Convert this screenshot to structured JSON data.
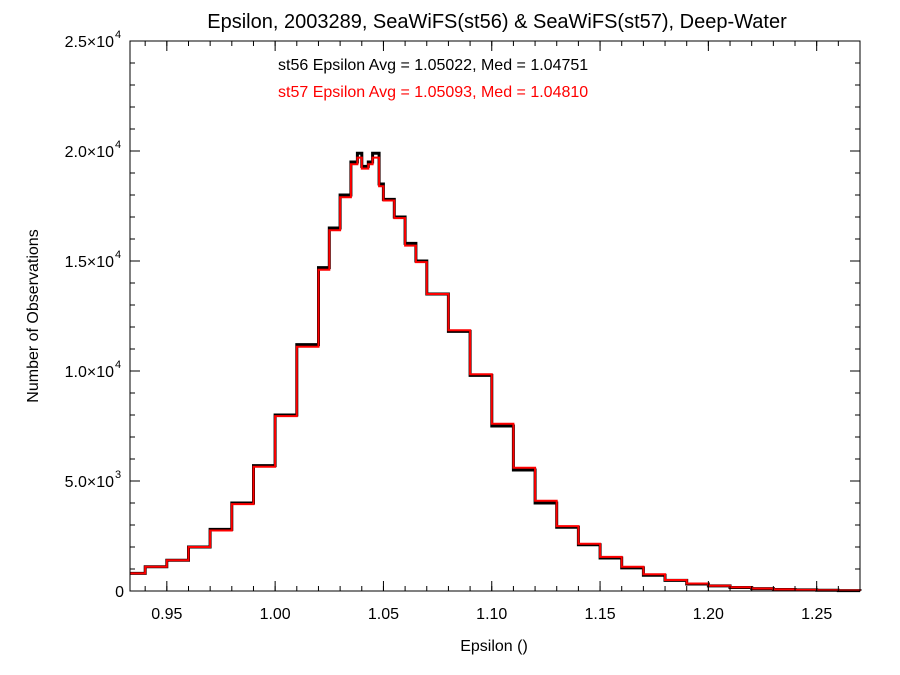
{
  "chart_data": {
    "type": "line",
    "style": "step-histogram",
    "title": "Epsilon, 2003289, SeaWiFS(st56) & SeaWiFS(st57), Deep-Water",
    "xlabel": "Epsilon ()",
    "ylabel": "Number of Observations",
    "xlim": [
      0.933,
      1.27
    ],
    "ylim": [
      0,
      25000
    ],
    "grid": false,
    "x_ticks": [
      {
        "value": 0.95,
        "label": "0.95"
      },
      {
        "value": 1.0,
        "label": "1.00"
      },
      {
        "value": 1.05,
        "label": "1.05"
      },
      {
        "value": 1.1,
        "label": "1.10"
      },
      {
        "value": 1.15,
        "label": "1.15"
      },
      {
        "value": 1.2,
        "label": "1.20"
      },
      {
        "value": 1.25,
        "label": "1.25"
      }
    ],
    "y_ticks": [
      {
        "value": 0,
        "mantissa": "0",
        "exponent": ""
      },
      {
        "value": 5000,
        "mantissa": "5.0×10",
        "exponent": "3"
      },
      {
        "value": 10000,
        "mantissa": "1.0×10",
        "exponent": "4"
      },
      {
        "value": 15000,
        "mantissa": "1.5×10",
        "exponent": "4"
      },
      {
        "value": 20000,
        "mantissa": "2.0×10",
        "exponent": "4"
      },
      {
        "value": 25000,
        "mantissa": "2.5×10",
        "exponent": "4"
      }
    ],
    "annotations": [
      {
        "text": "st56 Epsilon Avg = 1.05022, Med = 1.04751",
        "color": "#000000"
      },
      {
        "text": "st57 Epsilon Avg = 1.05093, Med = 1.04810",
        "color": "#ff0000"
      }
    ],
    "series": [
      {
        "name": "st56",
        "color": "#000000",
        "x": [
          0.933,
          0.94,
          0.95,
          0.96,
          0.97,
          0.98,
          0.99,
          1.0,
          1.01,
          1.02,
          1.025,
          1.03,
          1.035,
          1.038,
          1.04,
          1.043,
          1.045,
          1.048,
          1.05,
          1.055,
          1.06,
          1.065,
          1.07,
          1.08,
          1.09,
          1.1,
          1.11,
          1.12,
          1.13,
          1.14,
          1.15,
          1.16,
          1.17,
          1.18,
          1.19,
          1.2,
          1.21,
          1.22,
          1.23,
          1.24,
          1.25,
          1.26,
          1.27
        ],
        "y": [
          800,
          1100,
          1400,
          2000,
          2800,
          4000,
          5700,
          8000,
          11200,
          14700,
          16500,
          18000,
          19500,
          19900,
          19300,
          19500,
          19900,
          18500,
          17800,
          17000,
          15800,
          15000,
          13500,
          11800,
          9800,
          7500,
          5500,
          4000,
          2900,
          2100,
          1500,
          1050,
          720,
          480,
          320,
          230,
          160,
          110,
          70,
          50,
          30,
          20,
          10
        ]
      },
      {
        "name": "st57",
        "color": "#ff0000",
        "x": [
          0.933,
          0.94,
          0.95,
          0.96,
          0.97,
          0.98,
          0.99,
          1.0,
          1.01,
          1.02,
          1.025,
          1.03,
          1.035,
          1.038,
          1.04,
          1.043,
          1.045,
          1.048,
          1.05,
          1.055,
          1.06,
          1.065,
          1.07,
          1.08,
          1.09,
          1.1,
          1.11,
          1.12,
          1.13,
          1.14,
          1.15,
          1.16,
          1.17,
          1.18,
          1.19,
          1.2,
          1.21,
          1.22,
          1.23,
          1.24,
          1.25,
          1.26,
          1.27
        ],
        "y": [
          800,
          1100,
          1400,
          2000,
          2750,
          3950,
          5650,
          7950,
          11100,
          14600,
          16400,
          17900,
          19400,
          19700,
          19200,
          19400,
          19700,
          18400,
          17750,
          16950,
          15700,
          14950,
          13500,
          11850,
          9850,
          7600,
          5600,
          4100,
          2950,
          2150,
          1550,
          1100,
          760,
          500,
          340,
          240,
          170,
          115,
          75,
          52,
          32,
          22,
          12
        ]
      }
    ]
  }
}
